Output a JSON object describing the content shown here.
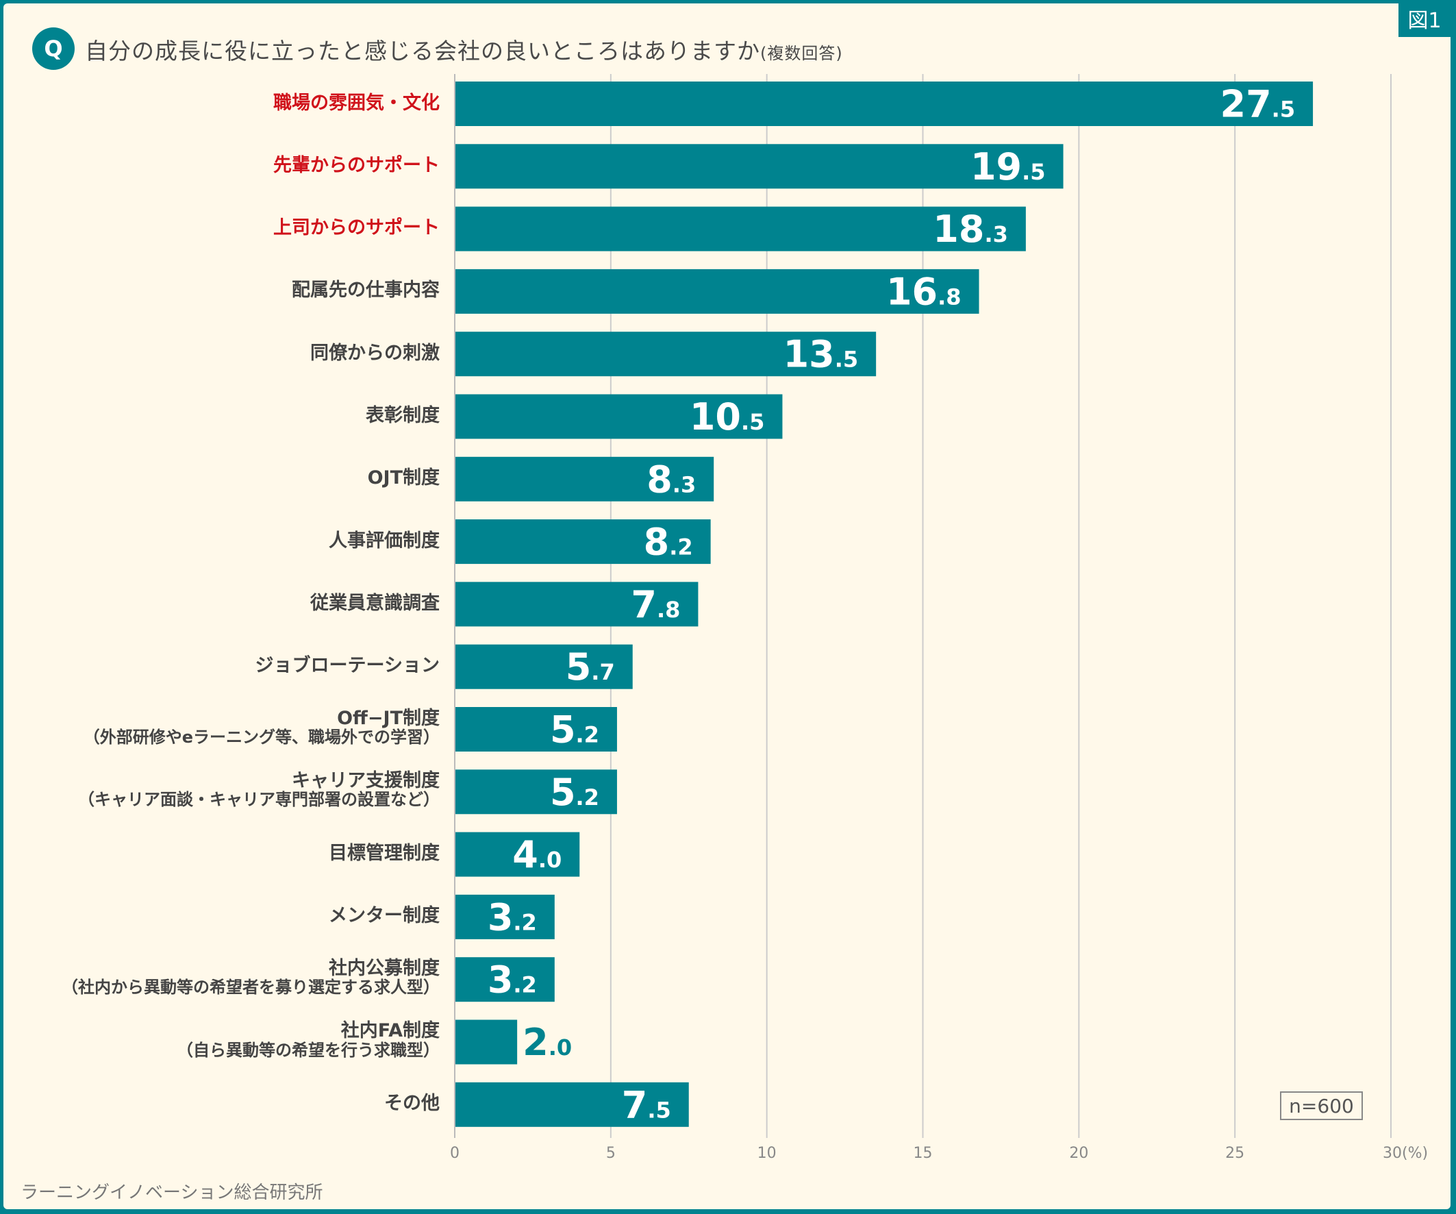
{
  "figure_label": "図1",
  "q_icon": "Q",
  "title": "自分の成長に役に立ったと感じる会社の良いところはありますか",
  "title_note": "(複数回答)",
  "source": "ラーニングイノベーション総合研究所",
  "sample_size": "n=600",
  "colors": {
    "bar": "#00838f",
    "highlight_label": "#d0121b",
    "background": "#fff9ea"
  },
  "chart_data": {
    "type": "bar",
    "orientation": "horizontal",
    "categories": [
      {
        "label": "職場の雰囲気・文化",
        "highlight": true
      },
      {
        "label": "先輩からのサポート",
        "highlight": true
      },
      {
        "label": "上司からのサポート",
        "highlight": true
      },
      {
        "label": "配属先の仕事内容"
      },
      {
        "label": "同僚からの刺激"
      },
      {
        "label": "表彰制度"
      },
      {
        "label": "OJT制度"
      },
      {
        "label": "人事評価制度"
      },
      {
        "label": "従業員意識調査"
      },
      {
        "label": "ジョブローテーション"
      },
      {
        "label": "Off−JT制度",
        "sub": "（外部研修やeラーニング等、職場外での学習）"
      },
      {
        "label": "キャリア支援制度",
        "sub": "（キャリア面談・キャリア専門部署の設置など）"
      },
      {
        "label": "目標管理制度"
      },
      {
        "label": "メンター制度"
      },
      {
        "label": "社内公募制度",
        "sub": "（社内から異動等の希望者を募り選定する求人型）"
      },
      {
        "label": "社内FA制度",
        "sub": "（自ら異動等の希望を行う求職型）"
      },
      {
        "label": "その他"
      }
    ],
    "values": [
      27.5,
      19.5,
      18.3,
      16.8,
      13.5,
      10.5,
      8.3,
      8.2,
      7.8,
      5.7,
      5.2,
      5.2,
      4.0,
      3.2,
      3.2,
      2.0,
      7.5
    ],
    "xlim": [
      0,
      30
    ],
    "xticks": [
      "0",
      "5",
      "10",
      "15",
      "20",
      "25",
      "30(%)"
    ],
    "grid": true
  }
}
